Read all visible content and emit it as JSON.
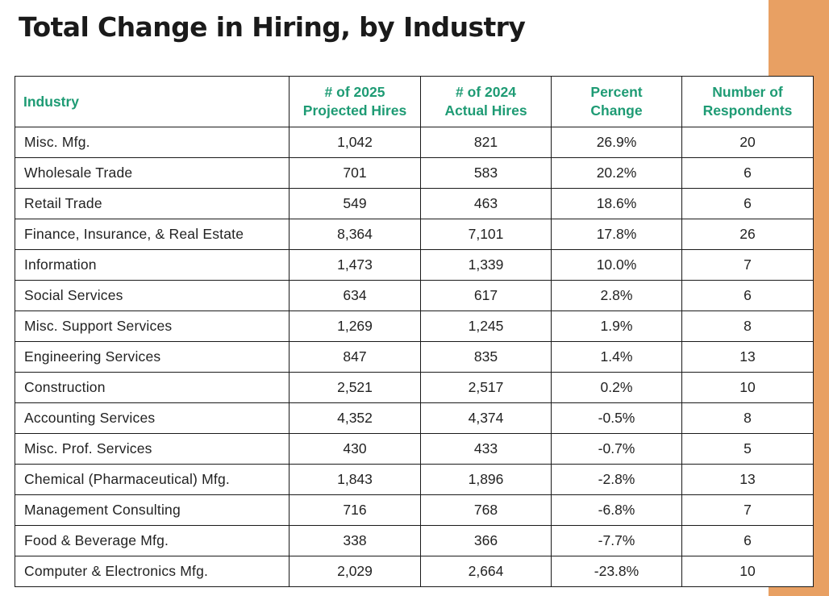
{
  "title": "Total Change in Hiring, by Industry",
  "colors": {
    "header_text": "#1E9B74",
    "accent_bar": "#E8A063",
    "border": "#1a1a1a"
  },
  "table": {
    "headers": {
      "industry": "Industry",
      "projected_2025": [
        "# of 2025",
        "Projected Hires"
      ],
      "actual_2024": [
        "# of 2024",
        "Actual Hires"
      ],
      "percent_change": [
        "Percent",
        "Change"
      ],
      "respondents": [
        "Number of",
        "Respondents"
      ]
    },
    "rows": [
      [
        "Misc. Mfg.",
        "1,042",
        "821",
        "26.9%",
        "20"
      ],
      [
        "Wholesale Trade",
        "701",
        "583",
        "20.2%",
        "6"
      ],
      [
        "Retail Trade",
        "549",
        "463",
        "18.6%",
        "6"
      ],
      [
        "Finance, Insurance, & Real Estate",
        "8,364",
        "7,101",
        "17.8%",
        "26"
      ],
      [
        "Information",
        "1,473",
        "1,339",
        "10.0%",
        "7"
      ],
      [
        "Social Services",
        "634",
        "617",
        "2.8%",
        "6"
      ],
      [
        "Misc. Support Services",
        "1,269",
        "1,245",
        "1.9%",
        "8"
      ],
      [
        "Engineering Services",
        "847",
        "835",
        "1.4%",
        "13"
      ],
      [
        "Construction",
        "2,521",
        "2,517",
        "0.2%",
        "10"
      ],
      [
        "Accounting Services",
        "4,352",
        "4,374",
        "-0.5%",
        "8"
      ],
      [
        "Misc. Prof. Services",
        "430",
        "433",
        "-0.7%",
        "5"
      ],
      [
        "Chemical (Pharmaceutical) Mfg.",
        "1,843",
        "1,896",
        "-2.8%",
        "13"
      ],
      [
        "Management Consulting",
        "716",
        "768",
        "-6.8%",
        "7"
      ],
      [
        "Food & Beverage Mfg.",
        "338",
        "366",
        "-7.7%",
        "6"
      ],
      [
        "Computer & Electronics Mfg.",
        "2,029",
        "2,664",
        "-23.8%",
        "10"
      ]
    ]
  }
}
